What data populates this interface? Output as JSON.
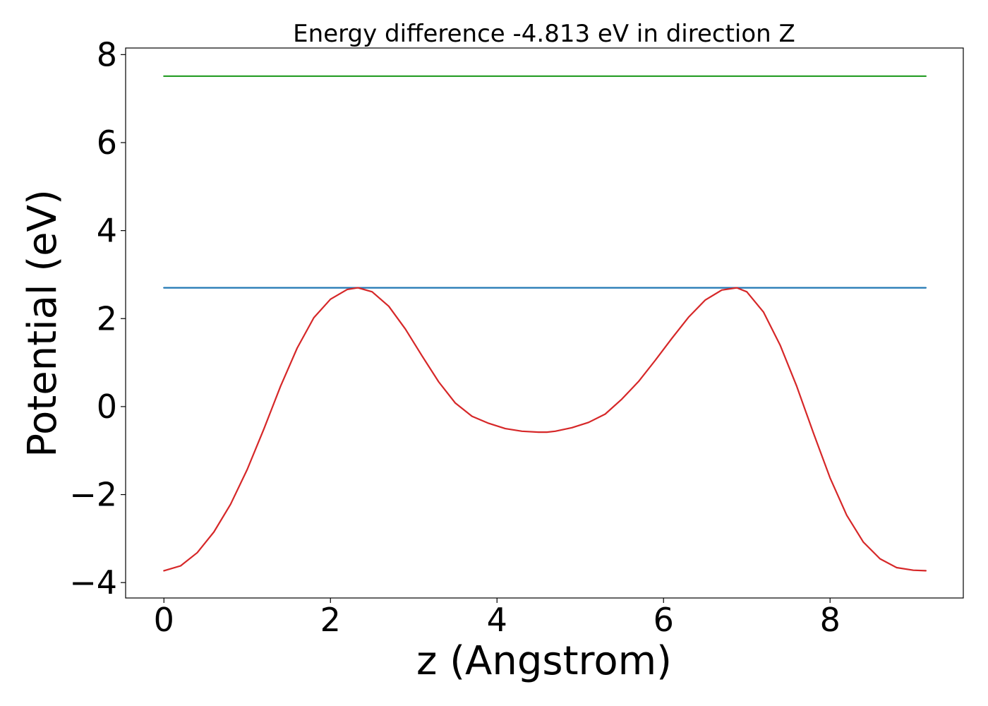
{
  "chart_data": {
    "type": "line",
    "title": "Energy difference -4.813 eV in direction Z",
    "xlabel": "z (Angstrom)",
    "ylabel": "Potential (eV)",
    "xlim": [
      -0.46,
      9.6
    ],
    "ylim": [
      -4.35,
      8.15
    ],
    "xticks": [
      0,
      2,
      4,
      6,
      8
    ],
    "xtick_labels": [
      "0",
      "2",
      "4",
      "6",
      "8"
    ],
    "yticks": [
      -4,
      -2,
      0,
      2,
      4,
      6,
      8
    ],
    "ytick_labels": [
      "−4",
      "−2",
      "0",
      "2",
      "4",
      "6",
      "8"
    ],
    "grid": false,
    "series": [
      {
        "color": "#d62728",
        "x": [
          0.0,
          0.2,
          0.4,
          0.6,
          0.8,
          1.0,
          1.2,
          1.4,
          1.6,
          1.8,
          2.0,
          2.2,
          2.33,
          2.5,
          2.7,
          2.9,
          3.1,
          3.3,
          3.5,
          3.7,
          3.9,
          4.1,
          4.3,
          4.5,
          4.6,
          4.7,
          4.9,
          5.1,
          5.3,
          5.5,
          5.7,
          5.9,
          6.1,
          6.3,
          6.5,
          6.7,
          6.88,
          7.0,
          7.2,
          7.4,
          7.6,
          7.8,
          8.0,
          8.2,
          8.4,
          8.6,
          8.8,
          9.0,
          9.15
        ],
        "values": [
          -3.73,
          -3.62,
          -3.32,
          -2.85,
          -2.22,
          -1.43,
          -0.51,
          0.46,
          1.33,
          2.02,
          2.44,
          2.66,
          2.7,
          2.61,
          2.28,
          1.76,
          1.15,
          0.56,
          0.08,
          -0.22,
          -0.38,
          -0.5,
          -0.56,
          -0.58,
          -0.58,
          -0.56,
          -0.48,
          -0.36,
          -0.17,
          0.17,
          0.57,
          1.05,
          1.55,
          2.03,
          2.42,
          2.65,
          2.7,
          2.61,
          2.15,
          1.4,
          0.46,
          -0.6,
          -1.62,
          -2.47,
          -3.08,
          -3.46,
          -3.66,
          -3.72,
          -3.73
        ]
      },
      {
        "color": "#1f77b4",
        "x": [
          0.0,
          9.15
        ],
        "values": [
          2.7,
          2.7
        ]
      },
      {
        "color": "#2ca02c",
        "x": [
          0.0,
          9.15
        ],
        "values": [
          7.51,
          7.51
        ]
      }
    ]
  }
}
